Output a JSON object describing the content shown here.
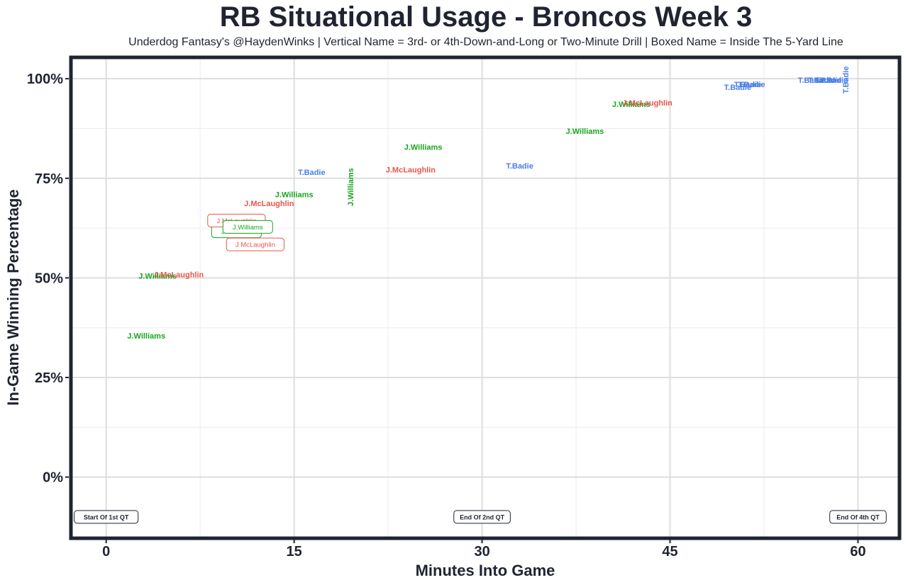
{
  "chart_data": {
    "type": "scatter",
    "title": "RB Situational Usage - Broncos Week 3",
    "subtitle": "Underdog Fantasy's @HaydenWinks | Vertical Name = 3rd- or 4th-Down-and-Long or Two-Minute Drill | Boxed Name = Inside The 5-Yard Line",
    "xlabel": "Minutes Into Game",
    "ylabel": "In-Game Winning Percentage",
    "xlim": [
      -2.7,
      63.2
    ],
    "ylim": [
      -15,
      105
    ],
    "x_ticks": [
      0,
      15,
      30,
      45,
      60
    ],
    "x_tick_labels": [
      "0",
      "15",
      "30",
      "45",
      "60"
    ],
    "y_ticks": [
      0,
      25,
      50,
      75,
      100
    ],
    "y_tick_labels": [
      "0%",
      "25%",
      "50%",
      "75%",
      "100%"
    ],
    "grid": true,
    "colors": {
      "J.Williams": "#18a51e",
      "J.McLaughlin": "#e8554a",
      "T.Badie": "#4a80e8"
    },
    "points": [
      {
        "player": "J.Williams",
        "x": 3.2,
        "y": 35.5,
        "style": "plain"
      },
      {
        "player": "J.Williams",
        "x": 4.1,
        "y": 50.5,
        "style": "plain"
      },
      {
        "player": "J.McLaughlin",
        "x": 5.8,
        "y": 50.9,
        "style": "plain"
      },
      {
        "player": "J.Williams",
        "x": 10.4,
        "y": 61.7,
        "style": "boxed"
      },
      {
        "player": "J.McLaughlin",
        "x": 10.4,
        "y": 64.4,
        "style": "boxed"
      },
      {
        "player": "J.Williams",
        "x": 11.3,
        "y": 62.8,
        "style": "boxed"
      },
      {
        "player": "J.McLaughlin",
        "x": 11.9,
        "y": 58.4,
        "style": "boxed"
      },
      {
        "player": "J.McLaughlin",
        "x": 13.0,
        "y": 68.7,
        "style": "plain"
      },
      {
        "player": "J.Williams",
        "x": 15.0,
        "y": 71.0,
        "style": "plain"
      },
      {
        "player": "T.Badie",
        "x": 16.4,
        "y": 76.6,
        "style": "plain"
      },
      {
        "player": "J.Williams",
        "x": 19.5,
        "y": 72.8,
        "style": "vertical"
      },
      {
        "player": "J.McLaughlin",
        "x": 24.3,
        "y": 77.2,
        "style": "plain"
      },
      {
        "player": "J.Williams",
        "x": 25.3,
        "y": 82.9,
        "style": "plain"
      },
      {
        "player": "T.Badie",
        "x": 33.0,
        "y": 78.2,
        "style": "plain"
      },
      {
        "player": "J.Williams",
        "x": 38.2,
        "y": 86.9,
        "style": "plain"
      },
      {
        "player": "J.Williams",
        "x": 41.9,
        "y": 93.6,
        "style": "plain"
      },
      {
        "player": "J.McLaughlin",
        "x": 43.2,
        "y": 94.0,
        "style": "plain"
      },
      {
        "player": "T.Badie",
        "x": 50.4,
        "y": 97.9,
        "style": "plain"
      },
      {
        "player": "T.Badie",
        "x": 51.2,
        "y": 98.6,
        "style": "plain"
      },
      {
        "player": "T.Badie",
        "x": 51.5,
        "y": 98.6,
        "style": "plain"
      },
      {
        "player": "T.Badie",
        "x": 56.3,
        "y": 99.7,
        "style": "plain"
      },
      {
        "player": "T.Badie",
        "x": 57.1,
        "y": 99.7,
        "style": "plain"
      },
      {
        "player": "T.Badie",
        "x": 57.6,
        "y": 99.7,
        "style": "plain"
      },
      {
        "player": "T.Badie",
        "x": 58.1,
        "y": 99.7,
        "style": "plain"
      },
      {
        "player": "T.Badie",
        "x": 59.0,
        "y": 99.7,
        "style": "vertical"
      }
    ],
    "annotations": [
      {
        "text": "Start Of 1st QT",
        "x": 0,
        "y": -10
      },
      {
        "text": "End Of 2nd QT",
        "x": 30,
        "y": -10
      },
      {
        "text": "End Of 4th QT",
        "x": 60,
        "y": -10
      }
    ]
  }
}
